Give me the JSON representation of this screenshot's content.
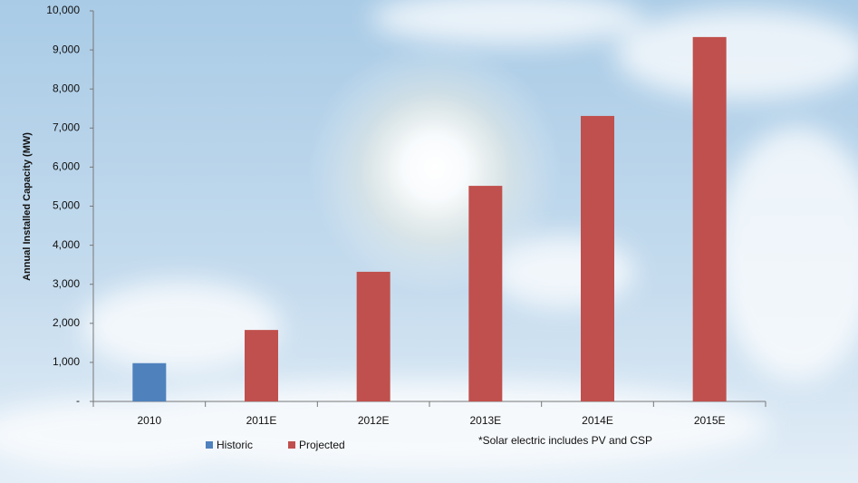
{
  "chart_data": {
    "type": "bar",
    "y_label": "Annual Installed Capacity (MW)",
    "annotation": "*Solar electric includes PV and CSP",
    "categories": [
      "2010",
      "2011E",
      "2012E",
      "2013E",
      "2014E",
      "2015E"
    ],
    "series": [
      {
        "name": "Historic",
        "color": "#4f81bd",
        "values": [
          980,
          null,
          null,
          null,
          null,
          null
        ]
      },
      {
        "name": "Projected",
        "color": "#c0504d",
        "values": [
          null,
          1830,
          3320,
          5520,
          7310,
          9330
        ]
      }
    ],
    "ylim": [
      0,
      10000
    ],
    "yticks": [
      {
        "value": 0,
        "label": "-"
      },
      {
        "value": 1000,
        "label": "1,000"
      },
      {
        "value": 2000,
        "label": "2,000"
      },
      {
        "value": 3000,
        "label": "3,000"
      },
      {
        "value": 4000,
        "label": "4,000"
      },
      {
        "value": 5000,
        "label": "5,000"
      },
      {
        "value": 6000,
        "label": "6,000"
      },
      {
        "value": 7000,
        "label": "7,000"
      },
      {
        "value": 8000,
        "label": "8,000"
      },
      {
        "value": 9000,
        "label": "9,000"
      },
      {
        "value": 10000,
        "label": "10,000"
      }
    ],
    "grid": false
  }
}
